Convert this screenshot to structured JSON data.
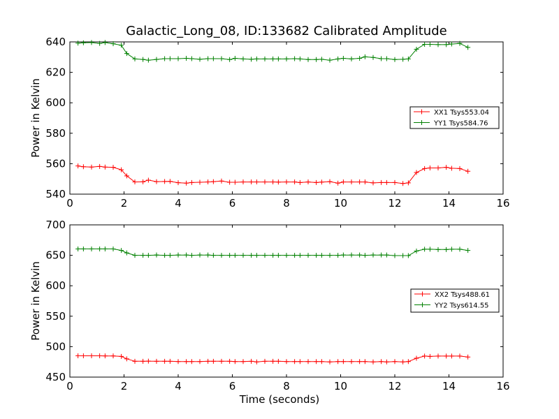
{
  "figure": {
    "title": "Galactic_Long_08, ID:133682 Calibrated Amplitude",
    "xlabel": "Time (seconds)"
  },
  "chart_data": [
    {
      "type": "line",
      "ylabel": "Power in Kelvin",
      "xlim": [
        0,
        16
      ],
      "ylim": [
        540,
        640
      ],
      "xticks": [
        0,
        2,
        4,
        6,
        8,
        10,
        12,
        14,
        16
      ],
      "yticks": [
        540,
        560,
        580,
        600,
        620,
        640
      ],
      "grid": false,
      "legend_position": "right",
      "x": [
        0.3,
        0.5,
        0.8,
        1.1,
        1.3,
        1.6,
        1.9,
        2.1,
        2.4,
        2.7,
        2.9,
        3.2,
        3.5,
        3.7,
        4.0,
        4.3,
        4.5,
        4.8,
        5.1,
        5.3,
        5.6,
        5.9,
        6.1,
        6.4,
        6.7,
        6.9,
        7.2,
        7.5,
        7.7,
        8.0,
        8.3,
        8.5,
        8.8,
        9.1,
        9.3,
        9.6,
        9.9,
        10.1,
        10.4,
        10.7,
        10.9,
        11.2,
        11.5,
        11.7,
        12.0,
        12.3,
        12.5,
        12.8,
        13.1,
        13.3,
        13.6,
        13.9,
        14.1,
        14.4,
        14.7
      ],
      "series": [
        {
          "name": "XX1 Tsys553.04",
          "color": "#ff0000",
          "values": [
            558.5,
            558.0,
            557.8,
            558.2,
            557.8,
            557.6,
            556.0,
            552.0,
            548.0,
            548.1,
            549.2,
            548.2,
            548.3,
            548.4,
            547.5,
            547.2,
            547.6,
            547.8,
            548.0,
            548.2,
            548.6,
            547.8,
            547.8,
            548.0,
            548.0,
            548.0,
            548.0,
            548.0,
            547.9,
            548.0,
            548.0,
            547.6,
            548.0,
            547.6,
            547.9,
            548.2,
            547.2,
            548.0,
            548.0,
            548.0,
            548.0,
            547.4,
            547.6,
            547.6,
            547.6,
            547.0,
            547.4,
            554.2,
            556.8,
            557.2,
            557.2,
            557.6,
            557.0,
            556.8,
            555.0
          ]
        },
        {
          "name": "YY1 Tsys584.76",
          "color": "#008000",
          "values": [
            639.2,
            639.4,
            639.6,
            639.0,
            639.6,
            638.8,
            637.8,
            632.4,
            628.8,
            628.5,
            628.0,
            628.5,
            629.0,
            629.0,
            629.0,
            629.2,
            629.0,
            628.6,
            629.0,
            629.0,
            629.0,
            628.4,
            629.2,
            628.8,
            628.6,
            628.8,
            628.8,
            628.8,
            628.8,
            628.8,
            629.0,
            628.8,
            628.4,
            628.4,
            628.6,
            628.0,
            628.8,
            629.2,
            628.8,
            629.2,
            630.2,
            629.8,
            629.0,
            629.0,
            628.4,
            628.6,
            628.8,
            635.2,
            638.4,
            638.4,
            638.2,
            638.2,
            638.6,
            639.0,
            636.4
          ]
        }
      ]
    },
    {
      "type": "line",
      "ylabel": "Power in Kelvin",
      "xlabel": "Time (seconds)",
      "xlim": [
        0,
        16
      ],
      "ylim": [
        450,
        700
      ],
      "xticks": [
        0,
        2,
        4,
        6,
        8,
        10,
        12,
        14,
        16
      ],
      "yticks": [
        450,
        500,
        550,
        600,
        650,
        700
      ],
      "grid": false,
      "legend_position": "right",
      "x": [
        0.3,
        0.5,
        0.8,
        1.1,
        1.3,
        1.6,
        1.9,
        2.1,
        2.4,
        2.7,
        2.9,
        3.2,
        3.5,
        3.7,
        4.0,
        4.3,
        4.5,
        4.8,
        5.1,
        5.3,
        5.6,
        5.9,
        6.1,
        6.4,
        6.7,
        6.9,
        7.2,
        7.5,
        7.7,
        8.0,
        8.3,
        8.5,
        8.8,
        9.1,
        9.3,
        9.6,
        9.9,
        10.1,
        10.4,
        10.7,
        10.9,
        11.2,
        11.5,
        11.7,
        12.0,
        12.3,
        12.5,
        12.8,
        13.1,
        13.3,
        13.6,
        13.9,
        14.1,
        14.4,
        14.7
      ],
      "series": [
        {
          "name": "XX2 Tsys488.61",
          "color": "#ff0000",
          "values": [
            485.0,
            485.0,
            485.0,
            485.0,
            484.8,
            484.8,
            484.0,
            480.0,
            476.0,
            476.0,
            476.2,
            476.0,
            476.0,
            476.0,
            475.5,
            475.5,
            475.5,
            475.5,
            476.0,
            476.0,
            476.0,
            476.0,
            475.5,
            475.5,
            476.0,
            475.0,
            476.0,
            476.0,
            476.0,
            475.5,
            475.5,
            475.5,
            475.5,
            475.5,
            475.5,
            475.0,
            475.5,
            475.5,
            475.5,
            475.5,
            475.5,
            475.0,
            475.5,
            475.0,
            475.5,
            475.0,
            475.5,
            481.0,
            484.5,
            484.0,
            484.5,
            484.5,
            484.5,
            484.5,
            483.0
          ]
        },
        {
          "name": "YY2 Tsys614.55",
          "color": "#008000",
          "values": [
            660.5,
            660.5,
            660.5,
            660.5,
            660.5,
            660.5,
            658.0,
            654.0,
            650.0,
            650.0,
            650.0,
            650.5,
            650.0,
            650.0,
            650.5,
            650.5,
            650.0,
            650.5,
            650.5,
            650.0,
            650.0,
            650.0,
            650.0,
            650.0,
            650.0,
            650.0,
            650.0,
            650.0,
            650.0,
            650.0,
            650.0,
            650.0,
            650.0,
            650.0,
            650.0,
            650.0,
            650.0,
            650.5,
            650.5,
            650.5,
            650.0,
            650.5,
            650.5,
            650.5,
            649.5,
            649.5,
            649.5,
            657.0,
            660.0,
            660.0,
            659.5,
            659.5,
            660.0,
            660.0,
            658.0
          ]
        }
      ]
    }
  ]
}
